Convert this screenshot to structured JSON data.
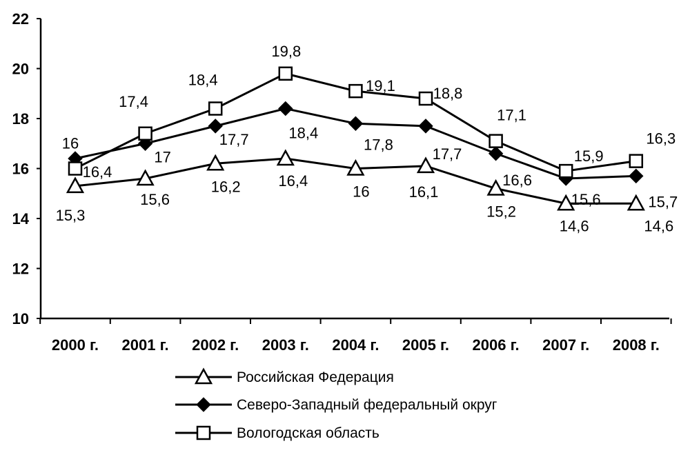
{
  "chart_data": {
    "type": "line",
    "categories": [
      "2000 г.",
      "2001 г.",
      "2002 г.",
      "2003 г.",
      "2004 г.",
      "2005 г.",
      "2006 г.",
      "2007 г.",
      "2008 г."
    ],
    "ylim": [
      10,
      22
    ],
    "yticks": [
      "10",
      "12",
      "14",
      "16",
      "18",
      "20",
      "22"
    ],
    "grid": false,
    "legend_position": "bottom",
    "series": [
      {
        "name": "Российская Федерация",
        "marker": "triangle-open",
        "values": [
          15.3,
          15.6,
          16.2,
          16.4,
          16,
          16.1,
          15.2,
          14.6,
          14.6
        ],
        "labels": [
          "15,3",
          "15,6",
          "16,2",
          "16,4",
          "16",
          "16,1",
          "15,2",
          "14,6",
          "14,6"
        ]
      },
      {
        "name": "Северо-Западный федеральный округ",
        "marker": "diamond-filled",
        "values": [
          16.4,
          17,
          17.7,
          18.4,
          17.8,
          17.7,
          16.6,
          15.6,
          15.7
        ],
        "labels": [
          "16,4",
          "17",
          "17,7",
          "18,4",
          "17,8",
          "17,7",
          "16,6",
          "15,6",
          "15,7"
        ]
      },
      {
        "name": "Вологодская область",
        "marker": "square-open",
        "values": [
          16,
          17.4,
          18.4,
          19.8,
          19.1,
          18.8,
          17.1,
          15.9,
          16.3
        ],
        "labels": [
          "16",
          "17,4",
          "18,4",
          "19,8",
          "19,1",
          "18,8",
          "17,1",
          "15,9",
          "16,3"
        ]
      }
    ],
    "colors": {
      "line": "#000000",
      "background": "#ffffff"
    }
  }
}
